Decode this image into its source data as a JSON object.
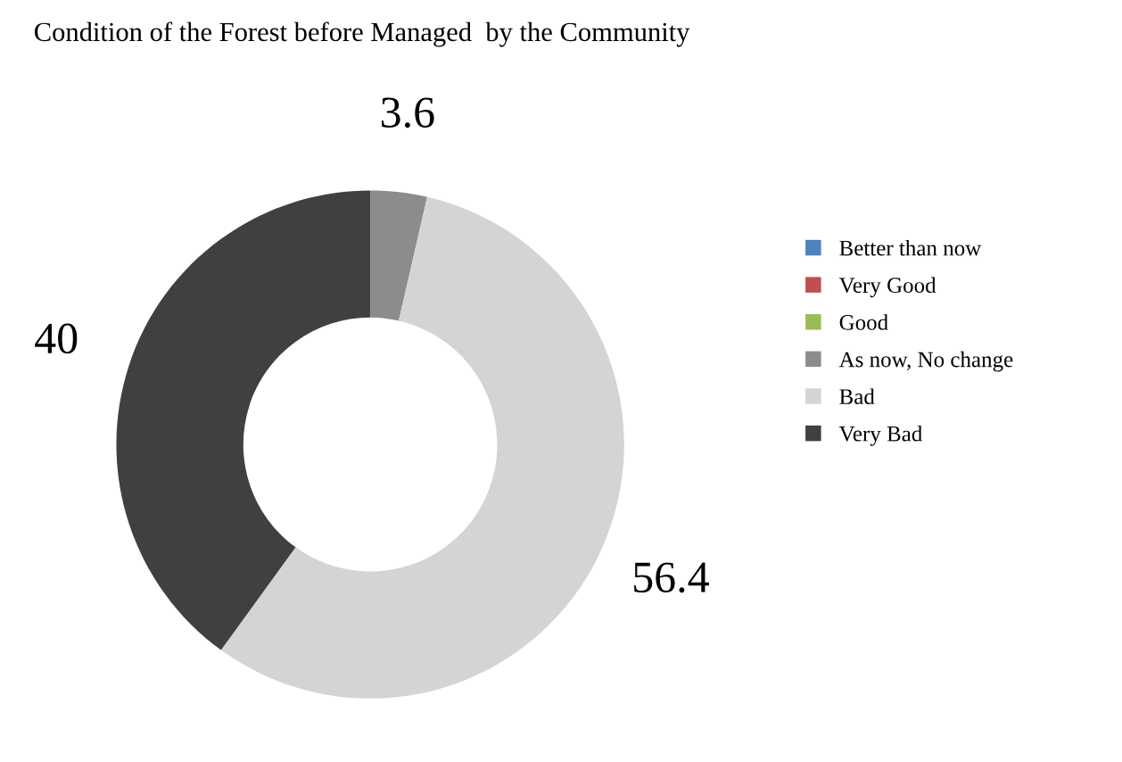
{
  "chart_data": {
    "type": "donut",
    "title": "Condition of the Forest before Managed  by the Community",
    "categories": [
      "Better than now",
      "Very Good",
      "Good",
      "As now, No change",
      "Bad",
      "Very Bad"
    ],
    "values": [
      0,
      0,
      0,
      3.6,
      56.4,
      40
    ],
    "colors": [
      "#4f81bd",
      "#c0504d",
      "#9bbb59",
      "#8c8c8c",
      "#d4d4d4",
      "#404040"
    ],
    "value_labels": [
      null,
      null,
      null,
      "3.6",
      "56.4",
      "40"
    ],
    "legend": "right"
  }
}
